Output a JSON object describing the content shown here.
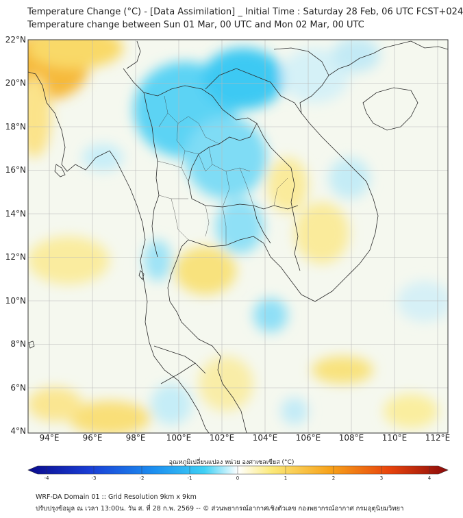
{
  "header": {
    "title_line1": "Temperature Change (°C) - [Data Assimilation] _ Initial Time : Saturday 28 Feb, 06 UTC FCST+024",
    "title_line2": "Temperature change between Sun 01 Mar, 00 UTC and Mon 02 Mar, 00 UTC"
  },
  "map": {
    "lat_labels": [
      "22°N",
      "20°N",
      "18°N",
      "16°N",
      "14°N",
      "12°N",
      "10°N",
      "8°N",
      "6°N",
      "4°N"
    ],
    "lon_labels": [
      "94°E",
      "96°E",
      "98°E",
      "100°E",
      "102°E",
      "104°E",
      "106°E",
      "108°E",
      "110°E",
      "112°E"
    ],
    "lat_range": [
      4,
      22.3
    ],
    "lon_range": [
      93,
      112.4
    ]
  },
  "colorbar": {
    "title": "อุณหภูมิเปลี่ยนแปลง หน่วย องศาเซลเซียส (°C)",
    "ticks": [
      "-4",
      "-3",
      "-2",
      "-1",
      "0",
      "1",
      "2",
      "3",
      "4"
    ],
    "range": [
      -4,
      4
    ],
    "colors": [
      "#0a0a8c",
      "#1a3fd6",
      "#1c8ff0",
      "#3fd0f5",
      "#ffffff",
      "#fbe97a",
      "#f7a21a",
      "#e8440c",
      "#8b0a0a"
    ]
  },
  "footer": {
    "line1": "WRF-DA Domain 01 :: Grid Resolution 9km x 9km",
    "line2": "ปรับปรุงข้อมูล ณ เวลา 13:00น. วัน ส. ที่ 28 ก.พ. 2569 -- © ส่วนพยากรณ์อากาศเชิงตัวเลข กองพยากรณ์อากาศ กรมอุตุนิยมวิทยา"
  }
}
